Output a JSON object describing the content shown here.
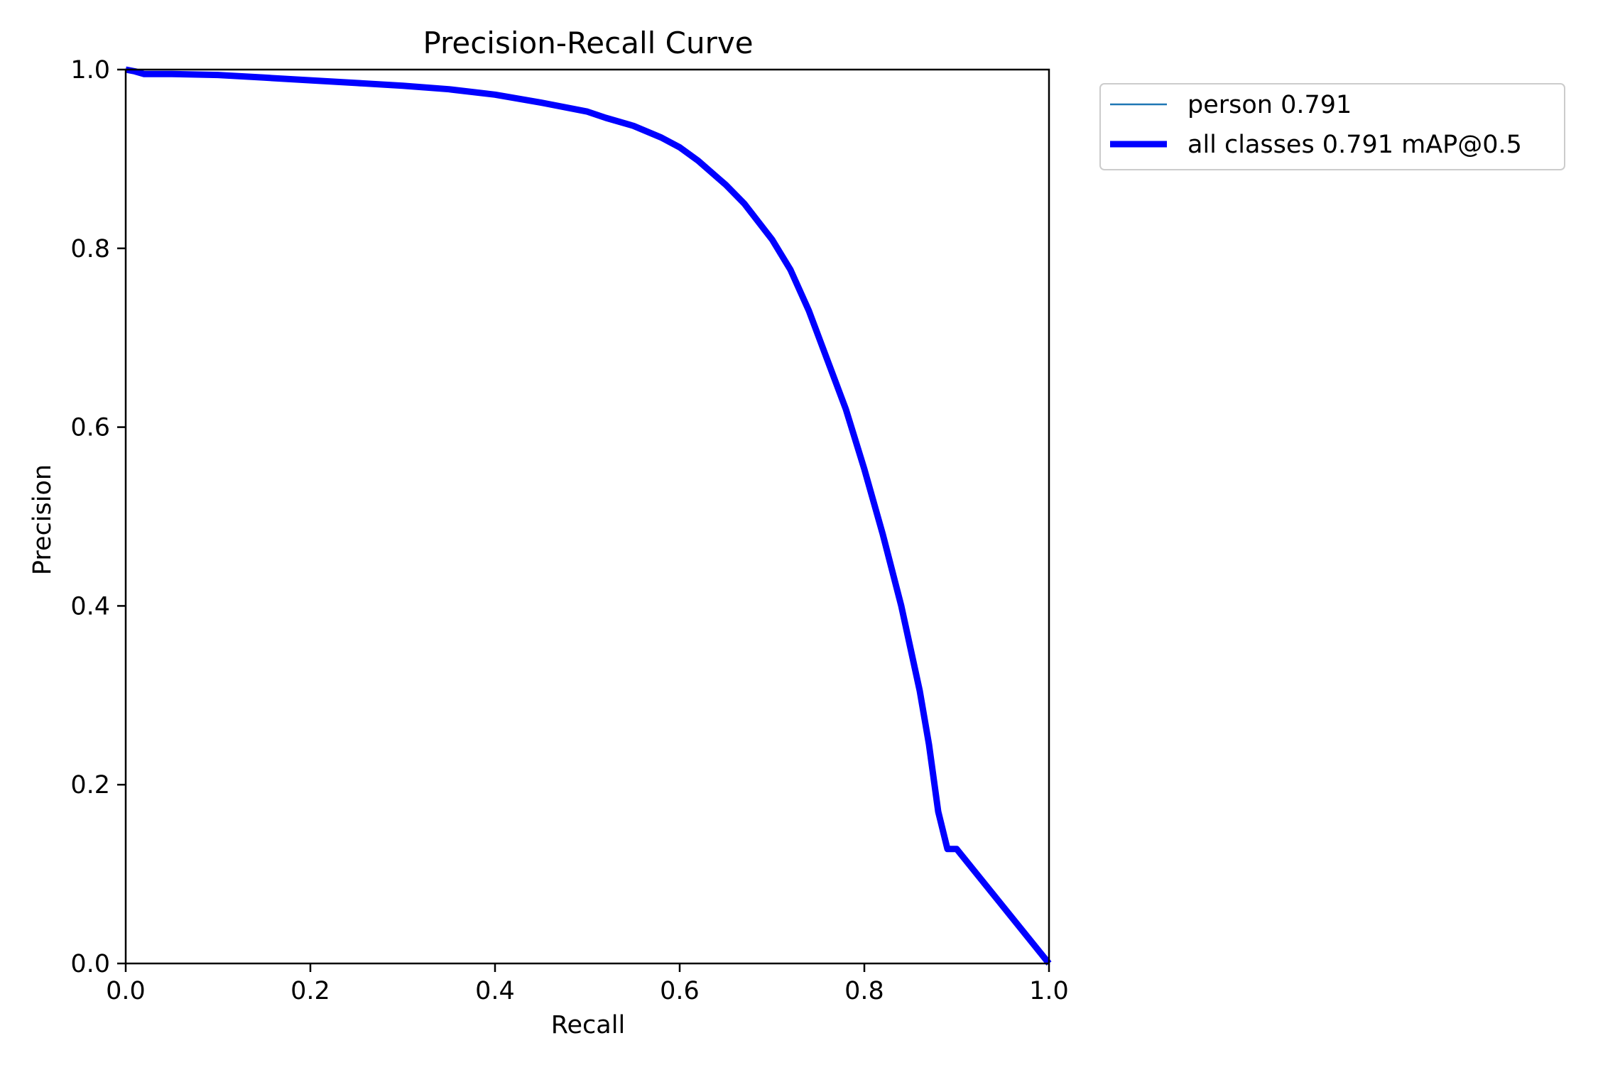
{
  "chart_data": {
    "type": "line",
    "title": "Precision-Recall Curve",
    "xlabel": "Recall",
    "ylabel": "Precision",
    "xlim": [
      0.0,
      1.0
    ],
    "ylim": [
      0.0,
      1.0
    ],
    "x_ticks": [
      0.0,
      0.2,
      0.4,
      0.6,
      0.8,
      1.0
    ],
    "y_ticks": [
      0.0,
      0.2,
      0.4,
      0.6,
      0.8,
      1.0
    ],
    "x_tick_labels": [
      "0.0",
      "0.2",
      "0.4",
      "0.6",
      "0.8",
      "1.0"
    ],
    "y_tick_labels": [
      "0.0",
      "0.2",
      "0.4",
      "0.6",
      "0.8",
      "1.0"
    ],
    "grid": false,
    "legend_position": "outside-top-right",
    "series": [
      {
        "name": "person 0.791",
        "color": "#1f77b4",
        "line": "thin",
        "x": [
          0.0,
          0.01,
          0.02,
          0.05,
          0.1,
          0.15,
          0.2,
          0.25,
          0.3,
          0.35,
          0.4,
          0.45,
          0.5,
          0.52,
          0.55,
          0.58,
          0.6,
          0.62,
          0.65,
          0.67,
          0.7,
          0.72,
          0.74,
          0.76,
          0.78,
          0.8,
          0.82,
          0.84,
          0.86,
          0.87,
          0.88,
          0.89,
          0.9,
          1.0
        ],
        "y": [
          1.0,
          0.998,
          0.995,
          0.995,
          0.994,
          0.991,
          0.988,
          0.985,
          0.982,
          0.978,
          0.972,
          0.963,
          0.953,
          0.946,
          0.937,
          0.924,
          0.913,
          0.898,
          0.871,
          0.85,
          0.81,
          0.776,
          0.73,
          0.675,
          0.62,
          0.553,
          0.48,
          0.4,
          0.305,
          0.245,
          0.17,
          0.128,
          0.128,
          0.0
        ]
      },
      {
        "name": "all classes 0.791 mAP@0.5",
        "color": "#0000ff",
        "line": "thick",
        "x": [
          0.0,
          0.01,
          0.02,
          0.05,
          0.1,
          0.15,
          0.2,
          0.25,
          0.3,
          0.35,
          0.4,
          0.45,
          0.5,
          0.52,
          0.55,
          0.58,
          0.6,
          0.62,
          0.65,
          0.67,
          0.7,
          0.72,
          0.74,
          0.76,
          0.78,
          0.8,
          0.82,
          0.84,
          0.86,
          0.87,
          0.88,
          0.89,
          0.9,
          1.0
        ],
        "y": [
          1.0,
          0.998,
          0.995,
          0.995,
          0.994,
          0.991,
          0.988,
          0.985,
          0.982,
          0.978,
          0.972,
          0.963,
          0.953,
          0.946,
          0.937,
          0.924,
          0.913,
          0.898,
          0.871,
          0.85,
          0.81,
          0.776,
          0.73,
          0.675,
          0.62,
          0.553,
          0.48,
          0.4,
          0.305,
          0.245,
          0.17,
          0.128,
          0.128,
          0.0
        ]
      }
    ]
  }
}
